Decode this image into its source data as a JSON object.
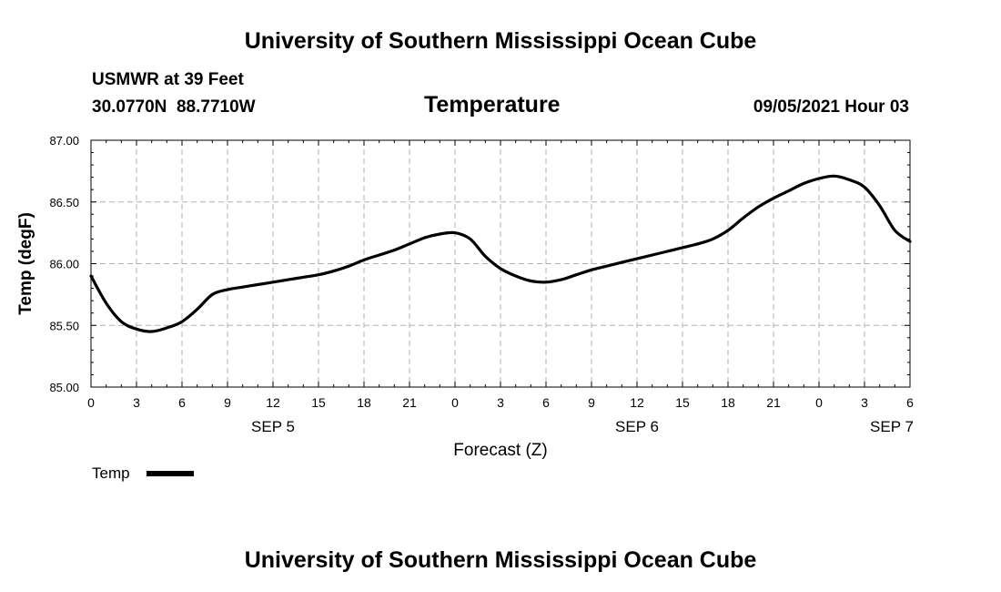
{
  "header": {
    "title": "University of Southern Mississippi Ocean Cube"
  },
  "footer": {
    "title": "University of Southern Mississippi Ocean Cube"
  },
  "station": {
    "name": "USMWR at 39 Feet",
    "lat": "30.0770N",
    "lon": "88.7710W"
  },
  "run_time": "09/05/2021 Hour 03",
  "colors": {
    "line": "#000000",
    "grid": "#b0b0b0",
    "background": "#ffffff"
  },
  "chart_data": {
    "type": "line",
    "title": "Temperature",
    "xlabel": "Forecast (Z)",
    "ylabel": "Temp (degF)",
    "xlim": [
      0,
      54
    ],
    "ylim": [
      85.0,
      87.0
    ],
    "x_ticks": [
      0,
      3,
      6,
      9,
      12,
      15,
      18,
      21,
      24,
      27,
      30,
      33,
      36,
      39,
      42,
      45,
      48,
      51,
      54
    ],
    "x_tick_labels": [
      "0",
      "3",
      "6",
      "9",
      "12",
      "15",
      "18",
      "21",
      "0",
      "3",
      "6",
      "9",
      "12",
      "15",
      "18",
      "21",
      "0",
      "3",
      "6"
    ],
    "y_ticks": [
      85.0,
      85.5,
      86.0,
      86.5,
      87.0
    ],
    "y_tick_labels": [
      "85.00",
      "85.50",
      "86.00",
      "86.50",
      "87.00"
    ],
    "date_labels": [
      {
        "x": 12,
        "label": "SEP 5"
      },
      {
        "x": 36,
        "label": "SEP 6"
      },
      {
        "x": 52.8,
        "label": "SEP 7"
      }
    ],
    "grid": true,
    "legend": {
      "position": "bottom-left",
      "entries": [
        "Temp"
      ]
    },
    "series": [
      {
        "name": "Temp",
        "x": [
          0,
          1,
          2,
          3,
          4,
          5,
          6,
          7,
          8,
          9,
          10,
          11,
          12,
          13,
          14,
          15,
          16,
          17,
          18,
          19,
          20,
          21,
          22,
          23,
          24,
          25,
          26,
          27,
          28,
          29,
          30,
          31,
          32,
          33,
          34,
          35,
          36,
          37,
          38,
          39,
          40,
          41,
          42,
          43,
          44,
          45,
          46,
          47,
          48,
          49,
          50,
          51,
          52,
          53,
          54
        ],
        "values": [
          85.9,
          85.68,
          85.53,
          85.47,
          85.45,
          85.48,
          85.53,
          85.63,
          85.75,
          85.79,
          85.81,
          85.83,
          85.85,
          85.87,
          85.89,
          85.91,
          85.94,
          85.98,
          86.03,
          86.07,
          86.11,
          86.16,
          86.21,
          86.24,
          86.25,
          86.2,
          86.06,
          85.96,
          85.9,
          85.86,
          85.85,
          85.87,
          85.91,
          85.95,
          85.98,
          86.01,
          86.04,
          86.07,
          86.1,
          86.13,
          86.16,
          86.2,
          86.27,
          86.37,
          86.46,
          86.53,
          86.59,
          86.65,
          86.69,
          86.71,
          86.68,
          86.62,
          86.47,
          86.27,
          86.18
        ]
      }
    ]
  }
}
